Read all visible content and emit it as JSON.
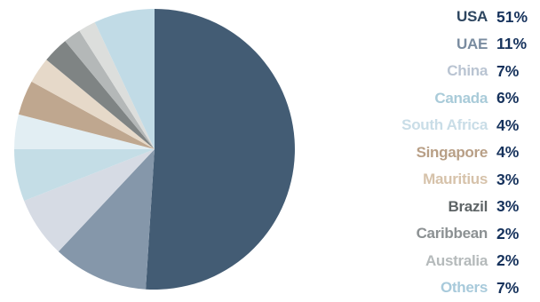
{
  "chart_data": {
    "type": "pie",
    "start_angle_deg": 0,
    "direction": "clockwise",
    "slices": [
      {
        "label": "USA",
        "value": 51,
        "value_label": "51%",
        "color": "#435c74",
        "label_color": "#2e4660"
      },
      {
        "label": "UAE",
        "value": 11,
        "value_label": "11%",
        "color": "#8597aa",
        "label_color": "#7a8ca0"
      },
      {
        "label": "China",
        "value": 7,
        "value_label": "7%",
        "color": "#d6dbe4",
        "label_color": "#b9c4d2"
      },
      {
        "label": "Canada",
        "value": 6,
        "value_label": "6%",
        "color": "#c4dde6",
        "label_color": "#a9cbd9"
      },
      {
        "label": "South Africa",
        "value": 4,
        "value_label": "4%",
        "color": "#e2eef3",
        "label_color": "#c9dde7"
      },
      {
        "label": "Singapore",
        "value": 4,
        "value_label": "4%",
        "color": "#bfa78f",
        "label_color": "#b89f86"
      },
      {
        "label": "Mauritius",
        "value": 3,
        "value_label": "3%",
        "color": "#e6d9c9",
        "label_color": "#d6c2aa"
      },
      {
        "label": "Brazil",
        "value": 3,
        "value_label": "3%",
        "color": "#7f8484",
        "label_color": "#5e6466"
      },
      {
        "label": "Caribbean",
        "value": 2,
        "value_label": "2%",
        "color": "#b4b8b8",
        "label_color": "#8c9193"
      },
      {
        "label": "Australia",
        "value": 2,
        "value_label": "2%",
        "color": "#dcdedc",
        "label_color": "#b5babb"
      },
      {
        "label": "Others",
        "value": 7,
        "value_label": "7%",
        "color": "#c1dbe6",
        "label_color": "#a8cadb"
      }
    ],
    "legend_position": "right"
  }
}
